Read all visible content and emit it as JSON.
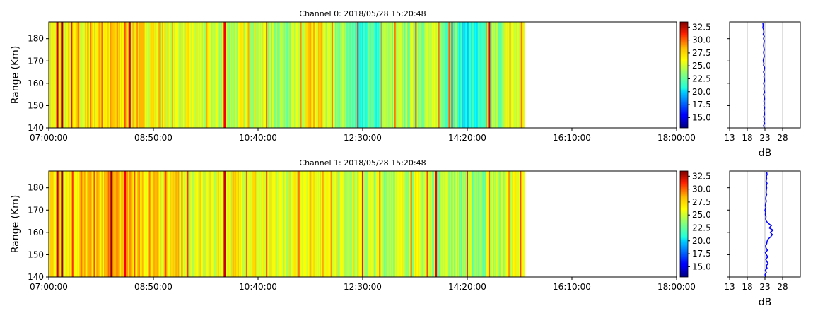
{
  "chart_data": [
    {
      "type": "heatmap",
      "title": "Channel 0: 2018/05/28 15:20:48",
      "ylabel": "Range (Km)",
      "xlabel": "",
      "xlim": [
        "07:00:00",
        "18:00:00"
      ],
      "xticks": [
        "07:00:00",
        "08:50:00",
        "10:40:00",
        "12:30:00",
        "14:20:00",
        "16:10:00",
        "18:00:00"
      ],
      "ylim": [
        140,
        187.5
      ],
      "yticks": [
        140,
        150,
        160,
        170,
        180
      ],
      "data_end_time": "15:20:00",
      "colorbar": {
        "vmin": 13,
        "vmax": 33.5,
        "colormap": "jet",
        "ticks": [
          "15.0",
          "17.5",
          "20.0",
          "22.5",
          "25.0",
          "27.5",
          "30.0",
          "32.5"
        ]
      },
      "stripes": [
        {
          "start": "07:00:00",
          "value": 25.5
        },
        {
          "start": "07:40:00",
          "value": 26.5
        },
        {
          "start": "08:20:00",
          "value": 26.0
        },
        {
          "start": "09:00:00",
          "value": 25.0
        },
        {
          "start": "09:40:00",
          "value": 24.5
        },
        {
          "start": "10:20:00",
          "value": 25.0
        },
        {
          "start": "10:50:00",
          "value": 24.2
        },
        {
          "start": "11:30:00",
          "value": 26.0
        },
        {
          "start": "11:50:00",
          "value": 24.5
        },
        {
          "start": "12:00:00",
          "value": 23.5
        },
        {
          "start": "12:20:00",
          "value": 22.0
        },
        {
          "start": "12:50:00",
          "value": 23.8
        },
        {
          "start": "13:20:00",
          "value": 24.2
        },
        {
          "start": "13:50:00",
          "value": 23.2
        },
        {
          "start": "14:10:00",
          "value": 21.0
        },
        {
          "start": "14:40:00",
          "value": 23.5
        },
        {
          "start": "15:00:00",
          "value": 25.0
        }
      ],
      "spikes": [
        {
          "time": "07:09:00",
          "value": 32.0
        },
        {
          "time": "07:14:00",
          "value": 33.0
        },
        {
          "time": "07:24:00",
          "value": 30.5
        },
        {
          "time": "07:31:00",
          "value": 29.5
        },
        {
          "time": "07:44:00",
          "value": 28.5
        },
        {
          "time": "07:56:00",
          "value": 29.0
        },
        {
          "time": "08:05:00",
          "value": 28.0
        },
        {
          "time": "08:20:00",
          "value": 29.5
        },
        {
          "time": "08:25:00",
          "value": 31.5
        },
        {
          "time": "08:33:00",
          "value": 28.0
        },
        {
          "time": "08:57:00",
          "value": 28.5
        },
        {
          "time": "09:10:00",
          "value": 27.5
        },
        {
          "time": "09:46:00",
          "value": 27.5
        },
        {
          "time": "10:05:00",
          "value": 31.0
        },
        {
          "time": "10:30:00",
          "value": 27.5
        },
        {
          "time": "10:49:00",
          "value": 29.0
        },
        {
          "time": "11:25:00",
          "value": 28.0
        },
        {
          "time": "11:58:00",
          "value": 28.5
        },
        {
          "time": "12:25:00",
          "value": 30.5
        },
        {
          "time": "12:50:00",
          "value": 28.0
        },
        {
          "time": "13:04:00",
          "value": 28.5
        },
        {
          "time": "13:26:00",
          "value": 29.5
        },
        {
          "time": "13:50:00",
          "value": 28.5
        },
        {
          "time": "14:01:00",
          "value": 29.0
        },
        {
          "time": "14:04:00",
          "value": 30.0
        },
        {
          "time": "14:40:00",
          "value": 28.0
        },
        {
          "time": "14:43:00",
          "value": 31.5
        },
        {
          "time": "15:05:00",
          "value": 27.5
        },
        {
          "time": "15:17:00",
          "value": 28.5
        }
      ],
      "profile": {
        "xlabel": "dB",
        "xlim": [
          13,
          33
        ],
        "xticks": [
          13,
          18,
          23,
          28
        ],
        "grid": true,
        "range_km": [
          140,
          141,
          142,
          143,
          144,
          145,
          146,
          147,
          148,
          149,
          150,
          151,
          152,
          153,
          154,
          155,
          156,
          157,
          158,
          159,
          160,
          161,
          162,
          163,
          164,
          165,
          166,
          167,
          168,
          169,
          170,
          171,
          172,
          173,
          174,
          175,
          176,
          177,
          178,
          179,
          180,
          181,
          182,
          183,
          184,
          185,
          186,
          187
        ],
        "values_db": [
          22.8,
          22.6,
          22.9,
          22.7,
          22.9,
          22.6,
          22.9,
          22.8,
          22.7,
          22.9,
          22.7,
          22.8,
          22.7,
          22.9,
          22.8,
          22.6,
          22.9,
          22.7,
          22.7,
          22.8,
          22.6,
          22.9,
          22.8,
          22.7,
          22.8,
          22.6,
          22.8,
          22.9,
          22.6,
          22.7,
          22.5,
          22.6,
          22.8,
          22.7,
          22.6,
          22.8,
          22.7,
          22.6,
          22.7,
          22.8,
          22.6,
          22.8,
          22.5,
          22.7,
          22.6,
          22.4,
          22.5,
          22.4
        ]
      }
    },
    {
      "type": "heatmap",
      "title": "Channel 1: 2018/05/28 15:20:48",
      "ylabel": "Range (Km)",
      "xlabel": "",
      "xlim": [
        "07:00:00",
        "18:00:00"
      ],
      "xticks": [
        "07:00:00",
        "08:50:00",
        "10:40:00",
        "12:30:00",
        "14:20:00",
        "16:10:00",
        "18:00:00"
      ],
      "ylim": [
        140,
        187.5
      ],
      "yticks": [
        140,
        150,
        160,
        170,
        180
      ],
      "data_end_time": "15:20:00",
      "colorbar": {
        "vmin": 13,
        "vmax": 33.5,
        "colormap": "jet",
        "ticks": [
          "15.0",
          "17.5",
          "20.0",
          "22.5",
          "25.0",
          "27.5",
          "30.0",
          "32.5"
        ]
      },
      "stripes": [
        {
          "start": "07:00:00",
          "value": 26.5
        },
        {
          "start": "08:00:00",
          "value": 27.0
        },
        {
          "start": "08:40:00",
          "value": 26.2
        },
        {
          "start": "09:20:00",
          "value": 25.2
        },
        {
          "start": "10:00:00",
          "value": 25.8
        },
        {
          "start": "10:40:00",
          "value": 25.0
        },
        {
          "start": "11:20:00",
          "value": 26.2
        },
        {
          "start": "12:00:00",
          "value": 25.0
        },
        {
          "start": "12:30:00",
          "value": 24.5
        },
        {
          "start": "13:10:00",
          "value": 24.8
        },
        {
          "start": "13:40:00",
          "value": 24.2
        },
        {
          "start": "14:10:00",
          "value": 23.8
        },
        {
          "start": "14:40:00",
          "value": 24.5
        },
        {
          "start": "15:00:00",
          "value": 25.0
        }
      ],
      "spikes": [
        {
          "time": "07:09:00",
          "value": 32.0
        },
        {
          "time": "07:14:00",
          "value": 33.0
        },
        {
          "time": "07:25:00",
          "value": 30.0
        },
        {
          "time": "07:34:00",
          "value": 29.0
        },
        {
          "time": "07:48:00",
          "value": 29.5
        },
        {
          "time": "08:03:00",
          "value": 29.0
        },
        {
          "time": "08:06:00",
          "value": 33.0
        },
        {
          "time": "08:20:00",
          "value": 31.0
        },
        {
          "time": "08:30:00",
          "value": 29.5
        },
        {
          "time": "08:46:00",
          "value": 28.5
        },
        {
          "time": "09:03:00",
          "value": 29.5
        },
        {
          "time": "09:20:00",
          "value": 28.0
        },
        {
          "time": "09:26:00",
          "value": 30.0
        },
        {
          "time": "10:05:00",
          "value": 32.0
        },
        {
          "time": "10:28:00",
          "value": 29.0
        },
        {
          "time": "10:49:00",
          "value": 29.5
        },
        {
          "time": "11:23:00",
          "value": 28.5
        },
        {
          "time": "11:57:00",
          "value": 28.0
        },
        {
          "time": "12:30:00",
          "value": 30.5
        },
        {
          "time": "12:48:00",
          "value": 28.5
        },
        {
          "time": "13:21:00",
          "value": 29.0
        },
        {
          "time": "13:38:00",
          "value": 29.5
        },
        {
          "time": "13:47:00",
          "value": 31.0
        },
        {
          "time": "14:20:00",
          "value": 30.0
        },
        {
          "time": "14:43:00",
          "value": 29.0
        },
        {
          "time": "15:04:00",
          "value": 28.0
        },
        {
          "time": "15:16:00",
          "value": 29.5
        }
      ],
      "profile": {
        "xlabel": "dB",
        "xlim": [
          13,
          33
        ],
        "xticks": [
          13,
          18,
          23,
          28
        ],
        "grid": true,
        "range_km": [
          140,
          141,
          142,
          143,
          144,
          145,
          146,
          147,
          148,
          149,
          150,
          151,
          152,
          153,
          154,
          155,
          156,
          157,
          158,
          159,
          160,
          161,
          162,
          163,
          164,
          165,
          166,
          167,
          168,
          169,
          170,
          171,
          172,
          173,
          174,
          175,
          176,
          177,
          178,
          179,
          180,
          181,
          182,
          183,
          184,
          185,
          186,
          187
        ],
        "values_db": [
          23.2,
          23.0,
          23.4,
          23.1,
          23.6,
          23.3,
          23.9,
          23.5,
          23.2,
          23.8,
          23.4,
          23.1,
          23.7,
          23.3,
          23.2,
          23.5,
          23.6,
          23.9,
          24.6,
          25.1,
          24.5,
          25.3,
          24.2,
          24.8,
          24.0,
          23.4,
          23.2,
          23.3,
          23.1,
          23.2,
          23.0,
          23.3,
          23.1,
          23.2,
          23.4,
          23.2,
          23.3,
          23.5,
          23.3,
          23.4,
          23.5,
          23.4,
          23.6,
          23.3,
          23.5,
          23.4,
          23.6,
          23.5
        ]
      }
    }
  ]
}
